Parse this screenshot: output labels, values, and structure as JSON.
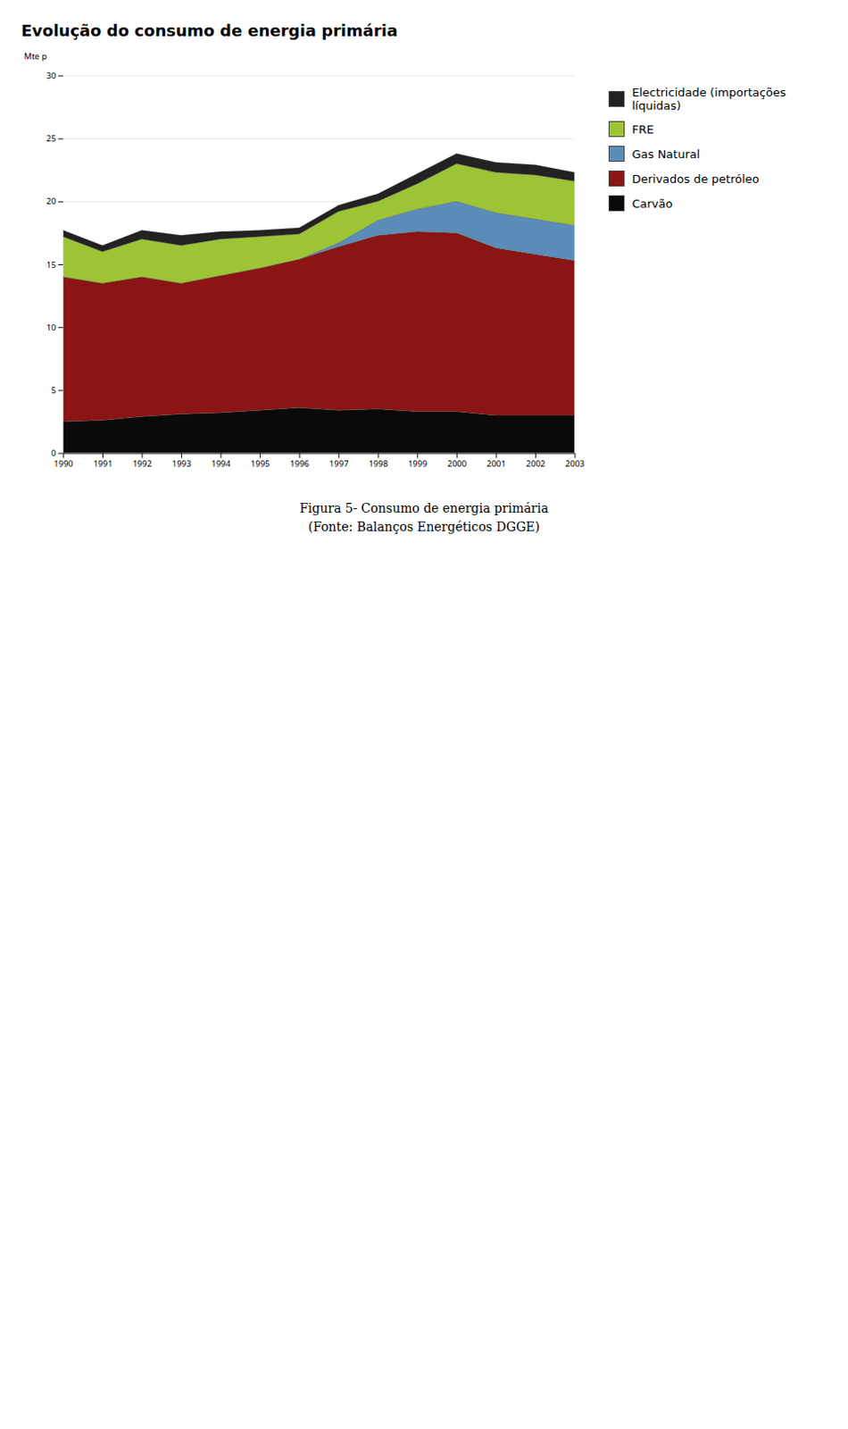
{
  "chart_data": {
    "type": "area",
    "stacked": true,
    "title": "Evolução do consumo de energia primária",
    "ylabel": "Mte p",
    "caption": "Figura 5- Consumo de energia primária",
    "source": "(Fonte: Balanços Energéticos DGGE)",
    "x": [
      1990,
      1991,
      1992,
      1993,
      1994,
      1995,
      1996,
      1997,
      1998,
      1999,
      2000,
      2001,
      2002,
      2003
    ],
    "series": [
      {
        "name": "Carvão",
        "color": "#0A0A0A",
        "values": [
          2.5,
          2.6,
          2.9,
          3.1,
          3.2,
          3.4,
          3.6,
          3.4,
          3.5,
          3.3,
          3.3,
          3.0,
          3.0,
          3.0
        ]
      },
      {
        "name": "Derivados de petróleo",
        "color": "#8B1515",
        "values": [
          11.5,
          10.9,
          11.1,
          10.4,
          10.9,
          11.3,
          11.8,
          13.0,
          13.8,
          14.3,
          14.2,
          13.3,
          12.8,
          12.3
        ]
      },
      {
        "name": "Gas Natural",
        "color": "#5B8DB8",
        "values": [
          0.0,
          0.0,
          0.0,
          0.0,
          0.0,
          0.0,
          0.0,
          0.3,
          1.2,
          1.8,
          2.5,
          2.8,
          2.8,
          2.8
        ]
      },
      {
        "name": "FRE",
        "color": "#9DC435",
        "values": [
          3.2,
          2.5,
          3.0,
          3.0,
          2.9,
          2.5,
          2.0,
          2.5,
          1.5,
          2.0,
          3.0,
          3.2,
          3.5,
          3.5
        ]
      },
      {
        "name": "Electricidade (importações líquidas)",
        "color": "#222222",
        "values": [
          0.5,
          0.5,
          0.7,
          0.8,
          0.6,
          0.5,
          0.5,
          0.5,
          0.6,
          0.8,
          0.8,
          0.8,
          0.8,
          0.7
        ]
      }
    ],
    "xlim": [
      1990,
      2003
    ],
    "xticks": [
      1990,
      1991,
      1992,
      1993,
      1994,
      1995,
      1996,
      1997,
      1998,
      1999,
      2000,
      2001,
      2002,
      2003
    ],
    "ylim": [
      0,
      30
    ],
    "yticks": [
      0,
      5,
      10,
      15,
      20,
      25,
      30
    ],
    "grid": true,
    "legend": "right"
  }
}
